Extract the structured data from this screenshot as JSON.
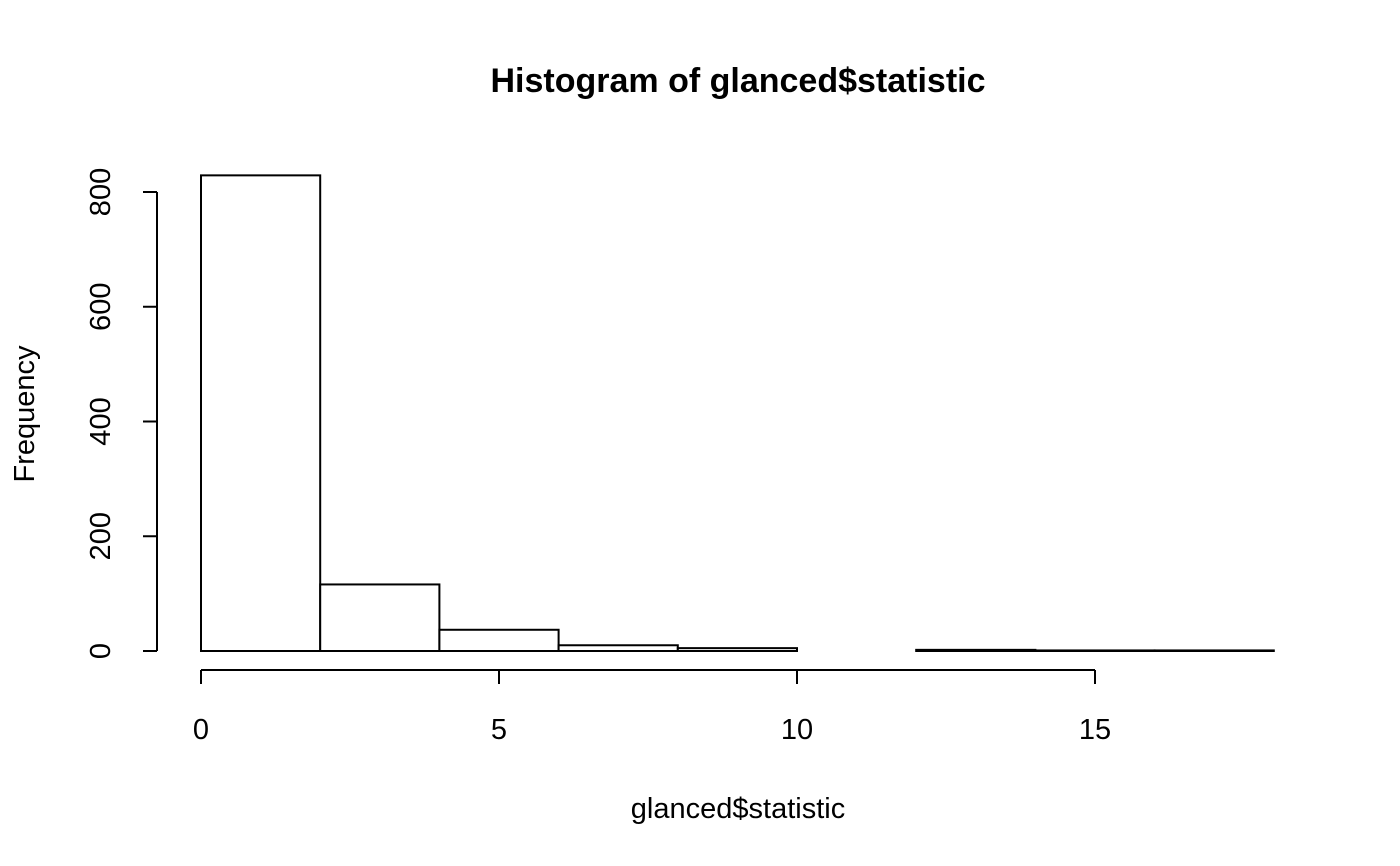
{
  "chart_data": {
    "type": "bar",
    "title": "Histogram of glanced$statistic",
    "xlabel": "glanced$statistic",
    "ylabel": "Frequency",
    "bins": [
      {
        "start": 0,
        "end": 2,
        "count": 829
      },
      {
        "start": 2,
        "end": 4,
        "count": 116
      },
      {
        "start": 4,
        "end": 6,
        "count": 37
      },
      {
        "start": 6,
        "end": 8,
        "count": 10
      },
      {
        "start": 8,
        "end": 10,
        "count": 5
      },
      {
        "start": 10,
        "end": 12,
        "count": 0
      },
      {
        "start": 12,
        "end": 14,
        "count": 2
      },
      {
        "start": 14,
        "end": 16,
        "count": 1
      },
      {
        "start": 16,
        "end": 18,
        "count": 1
      }
    ],
    "xlim": [
      0,
      18
    ],
    "ylim": [
      0,
      829
    ],
    "x_ticks": [
      0,
      5,
      10,
      15
    ],
    "x_tick_labels": [
      "0",
      "5",
      "10",
      "15"
    ],
    "y_ticks": [
      0,
      200,
      400,
      600,
      800
    ],
    "y_tick_labels": [
      "0",
      "200",
      "400",
      "600",
      "800"
    ],
    "grid": false,
    "legend": "none",
    "colors": {
      "fill": "#ffffff",
      "stroke": "#000000"
    }
  }
}
